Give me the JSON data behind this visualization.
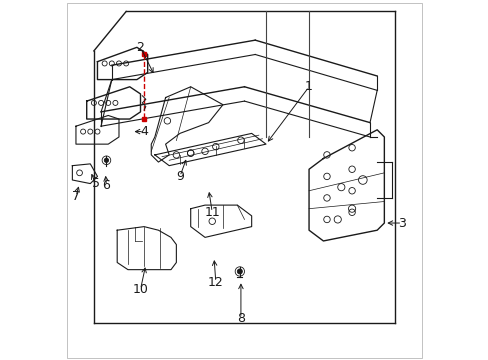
{
  "background_color": "#ffffff",
  "frame_color": "#1a1a1a",
  "red_color": "#cc0000",
  "label_fontsize": 9,
  "fig_width": 4.89,
  "fig_height": 3.6,
  "dpi": 100,
  "labels": {
    "1": [
      0.68,
      0.76,
      0.56,
      0.6
    ],
    "2": [
      0.21,
      0.87,
      0.25,
      0.79
    ],
    "3": [
      0.94,
      0.38,
      0.89,
      0.38
    ],
    "4": [
      0.22,
      0.635,
      0.185,
      0.635
    ],
    "5": [
      0.085,
      0.49,
      0.07,
      0.525
    ],
    "6": [
      0.115,
      0.485,
      0.112,
      0.52
    ],
    "7": [
      0.03,
      0.455,
      0.04,
      0.49
    ],
    "8": [
      0.49,
      0.115,
      0.49,
      0.22
    ],
    "9": [
      0.32,
      0.51,
      0.34,
      0.565
    ],
    "10": [
      0.21,
      0.195,
      0.225,
      0.265
    ],
    "11": [
      0.41,
      0.41,
      0.4,
      0.475
    ],
    "12": [
      0.42,
      0.215,
      0.415,
      0.285
    ]
  }
}
